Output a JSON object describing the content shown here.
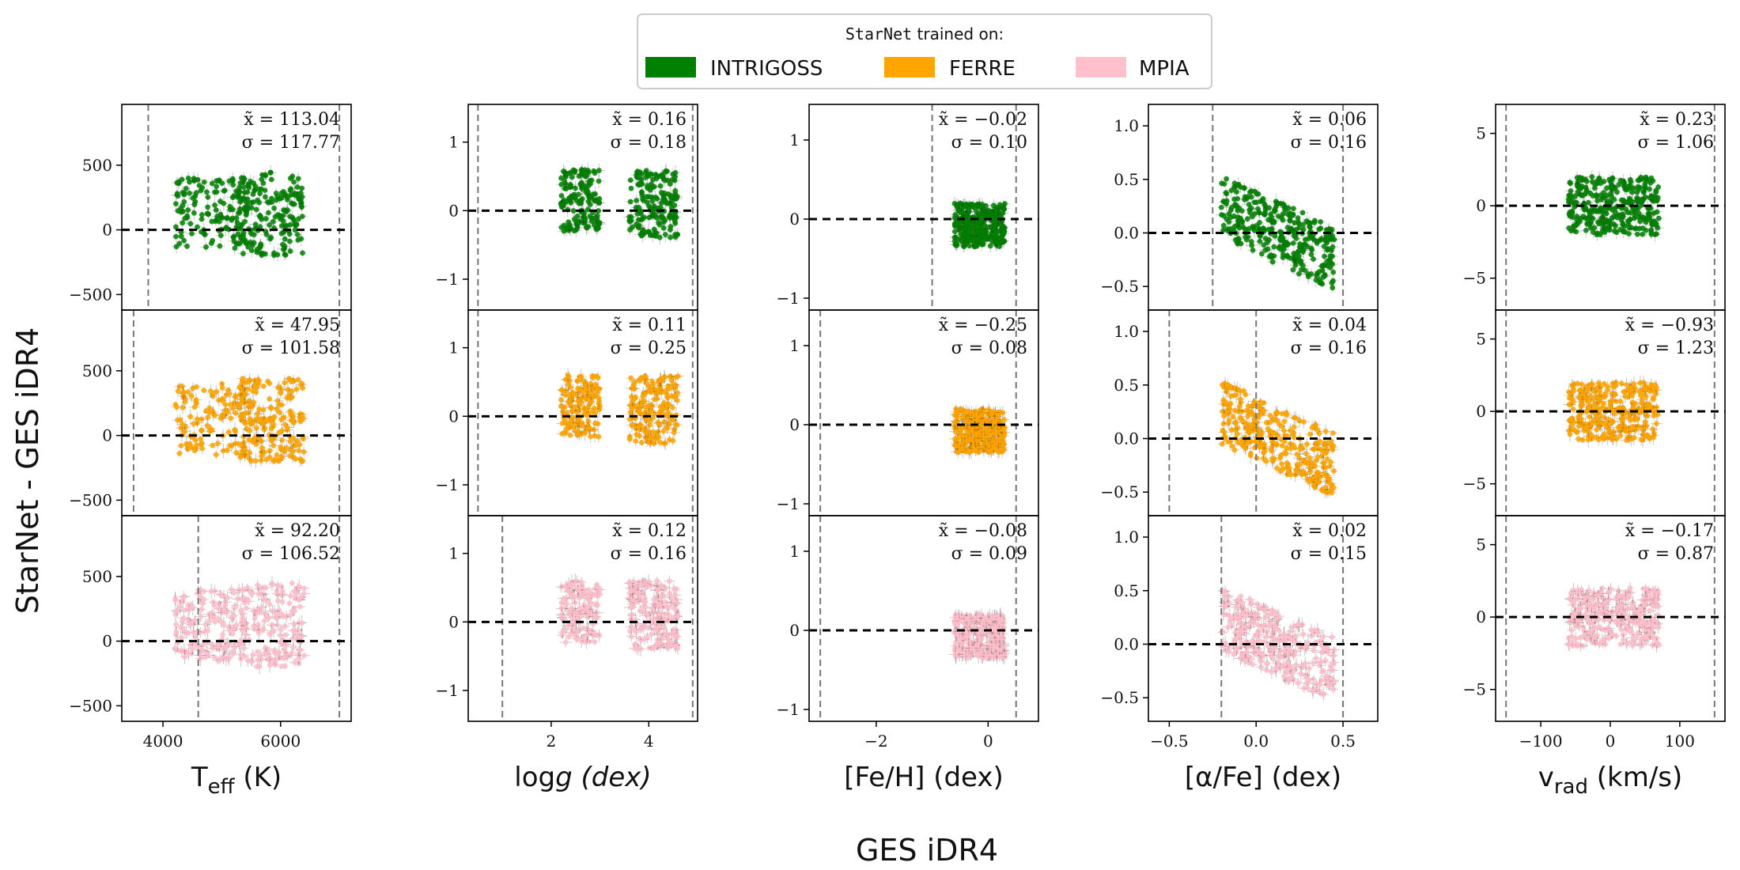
{
  "figure": {
    "ylabel": "StarNet - GES iDR4",
    "xlabel": "GES iDR4"
  },
  "legend": {
    "title_code": "StarNet",
    "title_rest": " trained on:",
    "entries": [
      {
        "label": "INTRIGOSS",
        "color": "#008000"
      },
      {
        "label": "FERRE",
        "color": "#ffa500"
      },
      {
        "label": "MPIA",
        "color": "#ffc0cb"
      }
    ]
  },
  "chart_data": {
    "type": "scatter",
    "rows": [
      "INTRIGOSS",
      "FERRE",
      "MPIA"
    ],
    "row_colors": [
      "#008000",
      "#ffa500",
      "#ffc0cb"
    ],
    "columns": [
      {
        "key": "teff",
        "xlabel_main": "T",
        "xlabel_sub": "eff",
        "xlabel_rest": " (K)",
        "xlim": [
          3300,
          7200
        ],
        "xticks": [
          4000,
          6000
        ],
        "xtick_labels": [
          "4000",
          "6000"
        ],
        "rows": [
          {
            "ylim": [
              -620,
              970
            ],
            "yticks": [
              -500,
              0,
              500
            ],
            "ytick_labels": [
              "−500",
              "0",
              "500"
            ],
            "vlines": [
              3750,
              7000
            ],
            "median": "x̃ = 113.04",
            "sigma": "σ = 117.77"
          },
          {
            "ylim": [
              -620,
              970
            ],
            "yticks": [
              -500,
              0,
              500
            ],
            "ytick_labels": [
              "−500",
              "0",
              "500"
            ],
            "vlines": [
              3500,
              7000
            ],
            "median": "x̃ = 47.95",
            "sigma": "σ = 101.58"
          },
          {
            "ylim": [
              -620,
              970
            ],
            "yticks": [
              -500,
              0,
              500
            ],
            "ytick_labels": [
              "−500",
              "0",
              "500"
            ],
            "vlines": [
              4600,
              7000
            ],
            "median": "x̃ = 92.20",
            "sigma": "σ = 106.52"
          }
        ]
      },
      {
        "key": "logg",
        "xlabel_main": "log",
        "xlabel_sub": "",
        "xlabel_rest": "g (dex)",
        "xlim": [
          0.3,
          5.0
        ],
        "xticks": [
          2,
          4
        ],
        "xtick_labels": [
          "2",
          "4"
        ],
        "rows": [
          {
            "ylim": [
              -1.45,
              1.55
            ],
            "yticks": [
              -1,
              0,
              1
            ],
            "ytick_labels": [
              "−1",
              "0",
              "1"
            ],
            "vlines": [
              0.5,
              4.9
            ],
            "median": "x̃ = 0.16",
            "sigma": "σ = 0.18"
          },
          {
            "ylim": [
              -1.45,
              1.55
            ],
            "yticks": [
              -1,
              0,
              1
            ],
            "ytick_labels": [
              "−1",
              "0",
              "1"
            ],
            "vlines": [
              0.5,
              4.9
            ],
            "median": "x̃ = 0.11",
            "sigma": "σ = 0.25"
          },
          {
            "ylim": [
              -1.45,
              1.55
            ],
            "yticks": [
              -1,
              0,
              1
            ],
            "ytick_labels": [
              "−1",
              "0",
              "1"
            ],
            "vlines": [
              1.0,
              4.9
            ],
            "median": "x̃ = 0.12",
            "sigma": "σ = 0.16"
          }
        ]
      },
      {
        "key": "feh",
        "xlabel_main": "[Fe/H] (dex)",
        "xlabel_sub": "",
        "xlabel_rest": "",
        "xlim": [
          -3.2,
          0.9
        ],
        "xticks": [
          -2,
          0
        ],
        "xtick_labels": [
          "−2",
          "0"
        ],
        "rows": [
          {
            "ylim": [
              -1.15,
              1.45
            ],
            "yticks": [
              -1,
              0,
              1
            ],
            "ytick_labels": [
              "−1",
              "0",
              "1"
            ],
            "vlines": [
              -1.0,
              0.5
            ],
            "median": "x̃ = −0.02",
            "sigma": "σ = 0.10"
          },
          {
            "ylim": [
              -1.15,
              1.45
            ],
            "yticks": [
              -1,
              0,
              1
            ],
            "ytick_labels": [
              "−1",
              "0",
              "1"
            ],
            "vlines": [
              -3.0,
              0.5
            ],
            "median": "x̃ = −0.25",
            "sigma": "σ = 0.08"
          },
          {
            "ylim": [
              -1.15,
              1.45
            ],
            "yticks": [
              -1,
              0,
              1
            ],
            "ytick_labels": [
              "−1",
              "0",
              "1"
            ],
            "vlines": [
              -3.0,
              0.5
            ],
            "median": "x̃ = −0.08",
            "sigma": "σ = 0.09"
          }
        ]
      },
      {
        "key": "alpha",
        "xlabel_main": "[α/Fe] (dex)",
        "xlabel_sub": "",
        "xlabel_rest": "",
        "xlim": [
          -0.62,
          0.7
        ],
        "xticks": [
          -0.5,
          0.0,
          0.5
        ],
        "xtick_labels": [
          "−0.5",
          "0.0",
          "0.5"
        ],
        "rows": [
          {
            "ylim": [
              -0.72,
              1.2
            ],
            "yticks": [
              -0.5,
              0.0,
              0.5,
              1.0
            ],
            "ytick_labels": [
              "−0.5",
              "0.0",
              "0.5",
              "1.0"
            ],
            "vlines": [
              -0.25,
              0.5
            ],
            "median": "x̃ = 0.06",
            "sigma": "σ = 0.16"
          },
          {
            "ylim": [
              -0.72,
              1.2
            ],
            "yticks": [
              -0.5,
              0.0,
              0.5,
              1.0
            ],
            "ytick_labels": [
              "−0.5",
              "0.0",
              "0.5",
              "1.0"
            ],
            "vlines": [
              -0.5,
              0.0
            ],
            "median": "x̃ = 0.04",
            "sigma": "σ = 0.16"
          },
          {
            "ylim": [
              -0.72,
              1.2
            ],
            "yticks": [
              -0.5,
              0.0,
              0.5,
              1.0
            ],
            "ytick_labels": [
              "−0.5",
              "0.0",
              "0.5",
              "1.0"
            ],
            "vlines": [
              -0.2,
              0.5
            ],
            "median": "x̃ = 0.02",
            "sigma": "σ = 0.15"
          }
        ]
      },
      {
        "key": "vrad",
        "xlabel_main": "v",
        "xlabel_sub": "rad",
        "xlabel_rest": " (km/s)",
        "xlim": [
          -165,
          165
        ],
        "xticks": [
          -100,
          0,
          100
        ],
        "xtick_labels": [
          "−100",
          "0",
          "100"
        ],
        "rows": [
          {
            "ylim": [
              -7.2,
              7.0
            ],
            "yticks": [
              -5,
              0,
              5
            ],
            "ytick_labels": [
              "−5",
              "0",
              "5"
            ],
            "vlines": [
              -150,
              150
            ],
            "median": "x̃ = 0.23",
            "sigma": "σ = 1.06"
          },
          {
            "ylim": [
              -7.2,
              7.0
            ],
            "yticks": [
              -5,
              0,
              5
            ],
            "ytick_labels": [
              "−5",
              "0",
              "5"
            ],
            "vlines": [
              -150,
              150
            ],
            "median": "x̃ = −0.93",
            "sigma": "σ = 1.23"
          },
          {
            "ylim": [
              -7.2,
              7.0
            ],
            "yticks": [
              -5,
              0,
              5
            ],
            "ytick_labels": [
              "−5",
              "0",
              "5"
            ],
            "vlines": [
              -150,
              150
            ],
            "median": "x̃ = −0.17",
            "sigma": "σ = 0.87"
          }
        ]
      }
    ],
    "clusters": {
      "teff": [
        {
          "x": [
            4200,
            5400
          ],
          "y": [
            -150,
            400
          ],
          "w": 0.45
        },
        {
          "x": [
            5300,
            6400
          ],
          "y": [
            -200,
            450
          ],
          "w": 0.55
        }
      ],
      "logg": [
        {
          "x": [
            2.2,
            3.0
          ],
          "y": [
            -0.3,
            0.6
          ],
          "w": 0.4
        },
        {
          "x": [
            3.6,
            4.6
          ],
          "y": [
            -0.4,
            0.6
          ],
          "w": 0.6
        }
      ],
      "feh": [
        {
          "x": [
            -0.6,
            0.3
          ],
          "y": [
            -0.35,
            0.2
          ],
          "w": 1.0
        }
      ],
      "alpha": [
        {
          "x": [
            -0.2,
            0.45
          ],
          "y": [
            -0.3,
            0.3
          ],
          "w": 1.0,
          "slope": -0.75
        }
      ],
      "vrad": [
        {
          "x": [
            -60,
            70
          ],
          "y": [
            -2.0,
            2.0
          ],
          "w": 1.0
        }
      ]
    }
  }
}
